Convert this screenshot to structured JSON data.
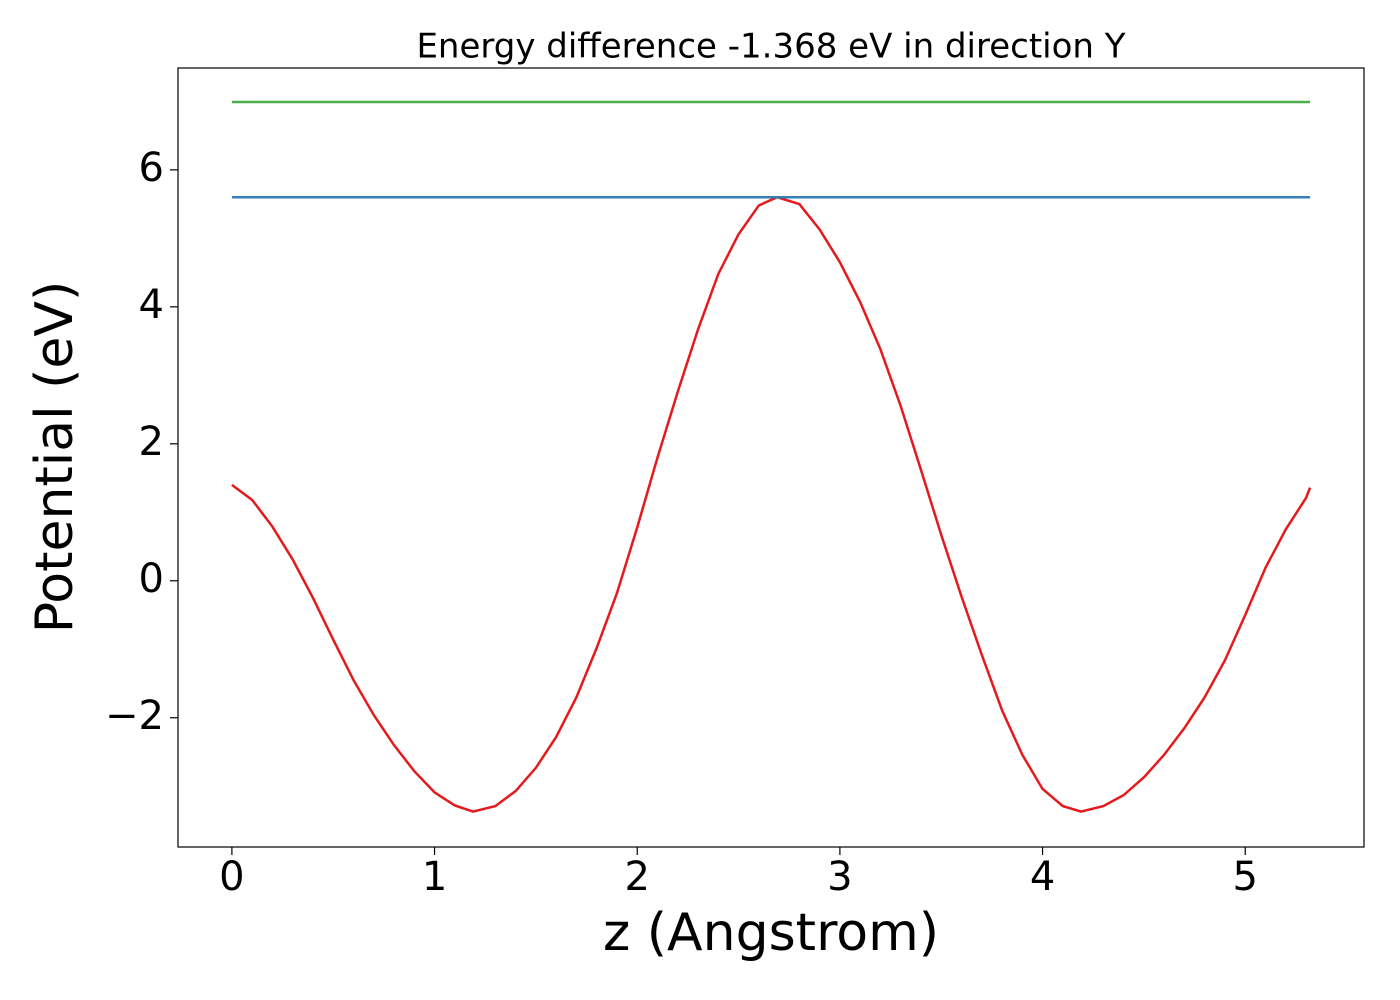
{
  "chart_data": {
    "type": "line",
    "title": "Energy difference -1.368 eV in direction Y",
    "x_label": "z (Angstrom)",
    "y_label": "Potential (eV)",
    "xlim": [
      -0.266,
      5.586
    ],
    "ylim": [
      -3.887,
      7.487
    ],
    "xticks": [
      0,
      1,
      2,
      3,
      4,
      5
    ],
    "yticks": [
      {
        "value": -2,
        "label": "−2"
      },
      0,
      2,
      4,
      6
    ],
    "series": [
      {
        "color": "#e41a1c",
        "x": [
          0,
          0.1,
          0.2,
          0.3,
          0.4,
          0.5,
          0.6,
          0.7,
          0.8,
          0.9,
          1.0,
          1.1,
          1.19,
          1.3,
          1.4,
          1.5,
          1.6,
          1.7,
          1.8,
          1.9,
          2.0,
          2.1,
          2.2,
          2.3,
          2.4,
          2.5,
          2.6,
          2.69,
          2.8,
          2.9,
          3.0,
          3.1,
          3.2,
          3.3,
          3.4,
          3.5,
          3.6,
          3.7,
          3.8,
          3.9,
          4.0,
          4.1,
          4.19,
          4.3,
          4.4,
          4.5,
          4.6,
          4.7,
          4.8,
          4.9,
          5.0,
          5.1,
          5.2,
          5.3,
          5.32
        ],
        "values": [
          1.4,
          1.18,
          0.79,
          0.31,
          -0.25,
          -0.86,
          -1.45,
          -1.96,
          -2.4,
          -2.78,
          -3.09,
          -3.28,
          -3.37,
          -3.29,
          -3.07,
          -2.73,
          -2.28,
          -1.7,
          -0.98,
          -0.18,
          0.78,
          1.8,
          2.76,
          3.67,
          4.48,
          5.06,
          5.48,
          5.6,
          5.5,
          5.13,
          4.65,
          4.07,
          3.38,
          2.55,
          1.62,
          0.67,
          -0.23,
          -1.08,
          -1.89,
          -2.54,
          -3.04,
          -3.29,
          -3.37,
          -3.29,
          -3.13,
          -2.87,
          -2.54,
          -2.15,
          -1.7,
          -1.16,
          -0.5,
          0.19,
          0.75,
          1.21,
          1.36
        ]
      },
      {
        "color": "#377eb8",
        "x": [
          0,
          5.32
        ],
        "values": [
          5.6,
          5.6
        ]
      },
      {
        "color": "#4daf4a",
        "x": [
          0,
          5.32
        ],
        "values": [
          6.99,
          6.99
        ]
      }
    ]
  }
}
